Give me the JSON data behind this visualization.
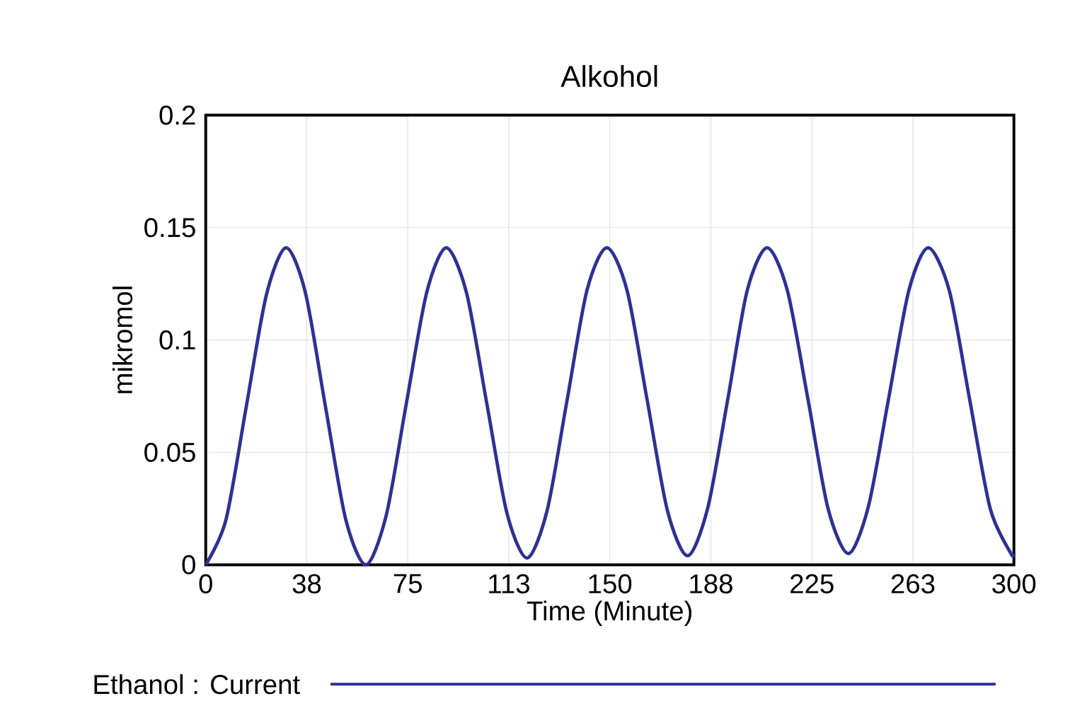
{
  "chart_data": {
    "type": "line",
    "title": "Alkohol",
    "xlabel": "Time (Minute)",
    "ylabel": "mikromol",
    "xlim": [
      0,
      300
    ],
    "xticks": [
      0,
      {
        "value": 37.5,
        "label": "38"
      },
      75,
      {
        "value": 112.5,
        "label": "113"
      },
      150,
      {
        "value": 187.5,
        "label": "188"
      },
      225,
      {
        "value": 262.5,
        "label": "263"
      },
      300
    ],
    "ylim": [
      0,
      0.2
    ],
    "yticks": [
      0,
      0.05,
      0.1,
      0.15,
      0.2
    ],
    "grid": true,
    "legend": "bottom",
    "x": [
      0,
      7.5,
      15,
      22.5,
      29.8,
      37,
      44.5,
      52,
      59.5,
      67,
      74.5,
      82,
      89.3,
      96.8,
      104.3,
      111.8,
      119.3,
      126.7,
      134.1,
      141.5,
      148.9,
      156.4,
      163.9,
      171.4,
      178.9,
      186.3,
      193.7,
      201,
      208.4,
      215.9,
      223.5,
      231,
      238.6,
      246,
      253.5,
      261,
      268.2,
      276,
      283.5,
      291.2,
      298.9,
      300
    ],
    "series": [
      {
        "name": "Ethanol : Current",
        "color": "#2e3192",
        "values": [
          0,
          0.02,
          0.07,
          0.12,
          0.141,
          0.121,
          0.07,
          0.02,
          0,
          0.022,
          0.072,
          0.121,
          0.141,
          0.121,
          0.072,
          0.023,
          0.003,
          0.024,
          0.073,
          0.122,
          0.141,
          0.122,
          0.073,
          0.024,
          0.004,
          0.025,
          0.073,
          0.122,
          0.141,
          0.122,
          0.074,
          0.025,
          0.005,
          0.026,
          0.074,
          0.122,
          0.141,
          0.122,
          0.074,
          0.025,
          0.005,
          0.005
        ]
      }
    ]
  }
}
